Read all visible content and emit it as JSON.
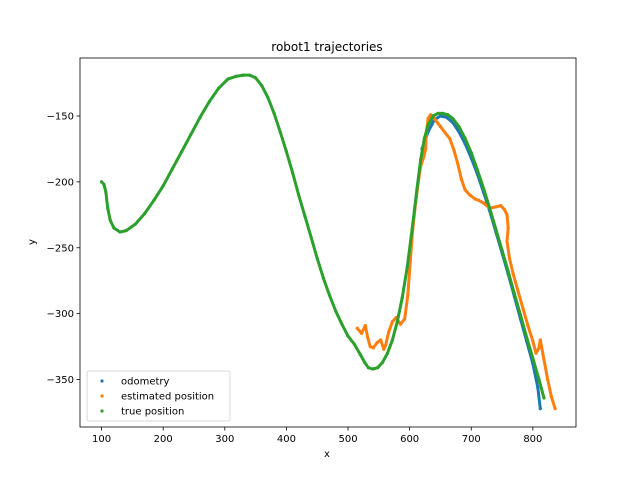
{
  "chart_data": {
    "type": "scatter",
    "title": "robot1 trajectories",
    "xlabel": "x",
    "ylabel": "y",
    "xlim": [
      65,
      870
    ],
    "ylim": [
      -386,
      -106
    ],
    "x_ticks": [
      100,
      200,
      300,
      400,
      500,
      600,
      700,
      800
    ],
    "y_ticks": [
      -350,
      -300,
      -250,
      -200,
      -150
    ],
    "x_tick_labels": [
      "100",
      "200",
      "300",
      "400",
      "500",
      "600",
      "700",
      "800"
    ],
    "y_tick_labels": [
      "−350",
      "−300",
      "−250",
      "−200",
      "−150"
    ],
    "grid": false,
    "legend_position": "lower-left",
    "series": [
      {
        "name": "odometry",
        "color": "#1f77b4",
        "points": [
          [
            620,
            -175
          ],
          [
            630,
            -162
          ],
          [
            640,
            -153
          ],
          [
            650,
            -150
          ],
          [
            660,
            -151
          ],
          [
            670,
            -155
          ],
          [
            680,
            -162
          ],
          [
            690,
            -171
          ],
          [
            700,
            -182
          ],
          [
            710,
            -194
          ],
          [
            720,
            -208
          ],
          [
            730,
            -222
          ],
          [
            740,
            -238
          ],
          [
            750,
            -254
          ],
          [
            760,
            -270
          ],
          [
            770,
            -287
          ],
          [
            780,
            -304
          ],
          [
            790,
            -321
          ],
          [
            800,
            -338
          ],
          [
            808,
            -356
          ],
          [
            812,
            -372
          ]
        ]
      },
      {
        "name": "estimated position",
        "color": "#ff7f0e",
        "points": [
          [
            515,
            -311
          ],
          [
            522,
            -315
          ],
          [
            528,
            -309
          ],
          [
            532,
            -318
          ],
          [
            536,
            -325
          ],
          [
            541,
            -326
          ],
          [
            547,
            -322
          ],
          [
            553,
            -320
          ],
          [
            558,
            -327
          ],
          [
            561,
            -324
          ],
          [
            566,
            -314
          ],
          [
            572,
            -306
          ],
          [
            578,
            -303
          ],
          [
            585,
            -308
          ],
          [
            592,
            -304
          ],
          [
            597,
            -286
          ],
          [
            601,
            -260
          ],
          [
            605,
            -236
          ],
          [
            610,
            -215
          ],
          [
            614,
            -200
          ],
          [
            618,
            -188
          ],
          [
            623,
            -181
          ],
          [
            626,
            -175
          ],
          [
            627,
            -163
          ],
          [
            630,
            -152
          ],
          [
            634,
            -149
          ],
          [
            640,
            -152
          ],
          [
            650,
            -158
          ],
          [
            658,
            -163
          ],
          [
            665,
            -167
          ],
          [
            672,
            -176
          ],
          [
            678,
            -186
          ],
          [
            684,
            -198
          ],
          [
            690,
            -206
          ],
          [
            698,
            -210
          ],
          [
            706,
            -213
          ],
          [
            712,
            -214
          ],
          [
            720,
            -216
          ],
          [
            730,
            -220
          ],
          [
            740,
            -219
          ],
          [
            748,
            -218
          ],
          [
            754,
            -221
          ],
          [
            758,
            -225
          ],
          [
            760,
            -235
          ],
          [
            758,
            -245
          ],
          [
            762,
            -258
          ],
          [
            768,
            -270
          ],
          [
            776,
            -283
          ],
          [
            784,
            -296
          ],
          [
            792,
            -309
          ],
          [
            800,
            -321
          ],
          [
            805,
            -330
          ],
          [
            810,
            -326
          ],
          [
            812,
            -320
          ],
          [
            818,
            -335
          ],
          [
            824,
            -350
          ],
          [
            830,
            -363
          ],
          [
            836,
            -372
          ]
        ]
      },
      {
        "name": "true position",
        "color": "#2ca02c",
        "points": [
          [
            100,
            -200
          ],
          [
            104,
            -202
          ],
          [
            107,
            -208
          ],
          [
            110,
            -220
          ],
          [
            114,
            -229
          ],
          [
            120,
            -235
          ],
          [
            130,
            -238
          ],
          [
            140,
            -237
          ],
          [
            155,
            -232
          ],
          [
            170,
            -224
          ],
          [
            185,
            -214
          ],
          [
            200,
            -203
          ],
          [
            215,
            -190
          ],
          [
            230,
            -177
          ],
          [
            245,
            -164
          ],
          [
            260,
            -151
          ],
          [
            275,
            -139
          ],
          [
            290,
            -129
          ],
          [
            305,
            -122
          ],
          [
            318,
            -120
          ],
          [
            330,
            -119
          ],
          [
            340,
            -119
          ],
          [
            350,
            -121
          ],
          [
            360,
            -127
          ],
          [
            370,
            -136
          ],
          [
            380,
            -148
          ],
          [
            390,
            -162
          ],
          [
            400,
            -177
          ],
          [
            410,
            -193
          ],
          [
            420,
            -210
          ],
          [
            430,
            -226
          ],
          [
            440,
            -242
          ],
          [
            450,
            -258
          ],
          [
            460,
            -273
          ],
          [
            470,
            -286
          ],
          [
            480,
            -298
          ],
          [
            490,
            -308
          ],
          [
            500,
            -317
          ],
          [
            510,
            -323
          ],
          [
            520,
            -331
          ],
          [
            527,
            -337
          ],
          [
            533,
            -341
          ],
          [
            540,
            -342
          ],
          [
            548,
            -341
          ],
          [
            556,
            -337
          ],
          [
            564,
            -330
          ],
          [
            572,
            -320
          ],
          [
            580,
            -306
          ],
          [
            588,
            -288
          ],
          [
            596,
            -265
          ],
          [
            604,
            -236
          ],
          [
            612,
            -205
          ],
          [
            618,
            -183
          ],
          [
            624,
            -167
          ],
          [
            630,
            -157
          ],
          [
            638,
            -150
          ],
          [
            646,
            -148
          ],
          [
            654,
            -148
          ],
          [
            662,
            -149
          ],
          [
            670,
            -152
          ],
          [
            680,
            -158
          ],
          [
            690,
            -167
          ],
          [
            700,
            -178
          ],
          [
            710,
            -191
          ],
          [
            720,
            -205
          ],
          [
            730,
            -220
          ],
          [
            740,
            -236
          ],
          [
            750,
            -252
          ],
          [
            760,
            -268
          ],
          [
            770,
            -285
          ],
          [
            780,
            -301
          ],
          [
            790,
            -318
          ],
          [
            800,
            -334
          ],
          [
            810,
            -350
          ],
          [
            818,
            -364
          ]
        ]
      }
    ]
  }
}
